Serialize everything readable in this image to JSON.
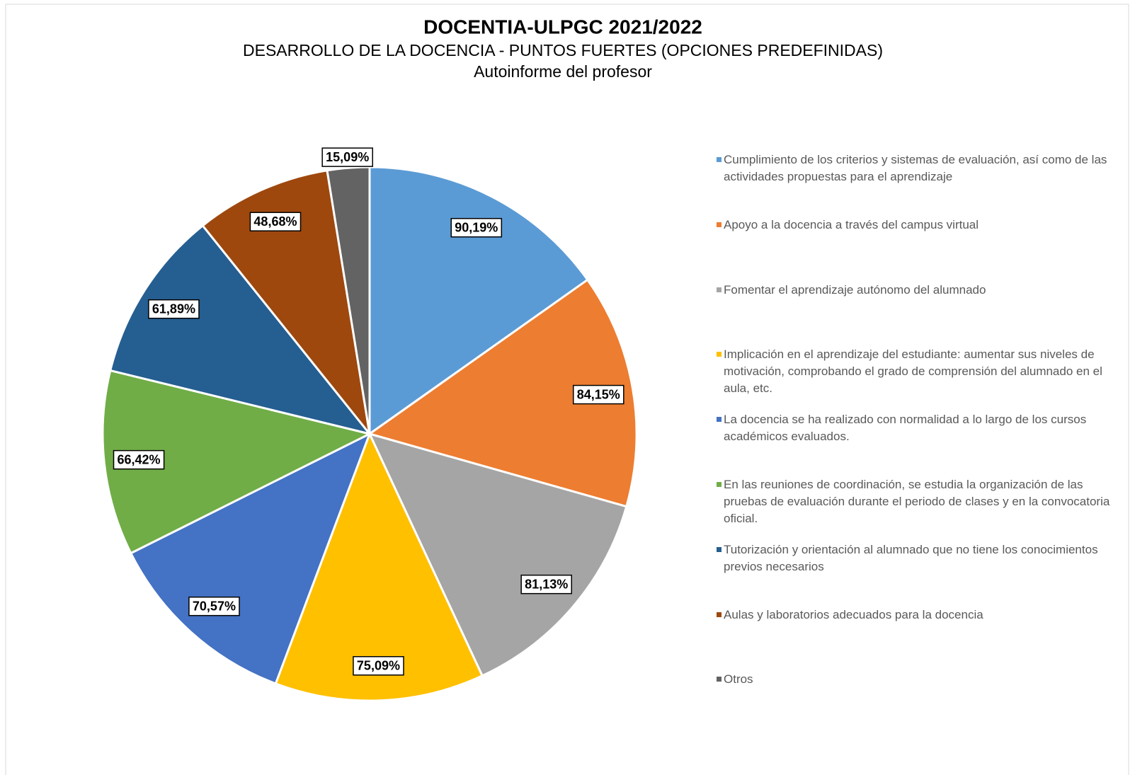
{
  "chart_data": {
    "type": "pie",
    "title": "DOCENTIA-ULPGC 2021/2022",
    "subtitle": "DESARROLLO DE LA DOCENCIA - PUNTOS FUERTES (OPCIONES PREDEFINIDAS)",
    "subtitle2": "Autoinforme del profesor",
    "categories": [
      "Cumplimiento de los criterios y sistemas de evaluación, así como de las actividades propuestas para el aprendizaje",
      "Apoyo a la docencia a través del campus virtual",
      "Fomentar el aprendizaje autónomo del alumnado",
      "Implicación en el aprendizaje del estudiante: aumentar sus niveles de motivación, comprobando el grado de comprensión del alumnado en el aula, etc.",
      "La docencia se ha realizado con normalidad a lo largo de los cursos académicos evaluados.",
      "En las reuniones de coordinación, se estudia la organización de las pruebas de evaluación durante el periodo de clases y en la convocatoria oficial.",
      "Tutorización y orientación al alumnado que no tiene los conocimientos previos necesarios",
      "Aulas y laboratorios adecuados para la docencia",
      "Otros"
    ],
    "values": [
      90.19,
      84.15,
      81.13,
      75.09,
      70.57,
      66.42,
      61.89,
      48.68,
      15.09
    ],
    "value_labels": [
      "90,19%",
      "84,15%",
      "81,13%",
      "75,09%",
      "70,57%",
      "66,42%",
      "61,89%",
      "48,68%",
      "15,09%"
    ],
    "colors": [
      "#5b9bd5",
      "#ed7d31",
      "#a5a5a5",
      "#ffc000",
      "#4472c4",
      "#70ad47",
      "#255e91",
      "#9e480e",
      "#636363"
    ],
    "legend": "right"
  }
}
